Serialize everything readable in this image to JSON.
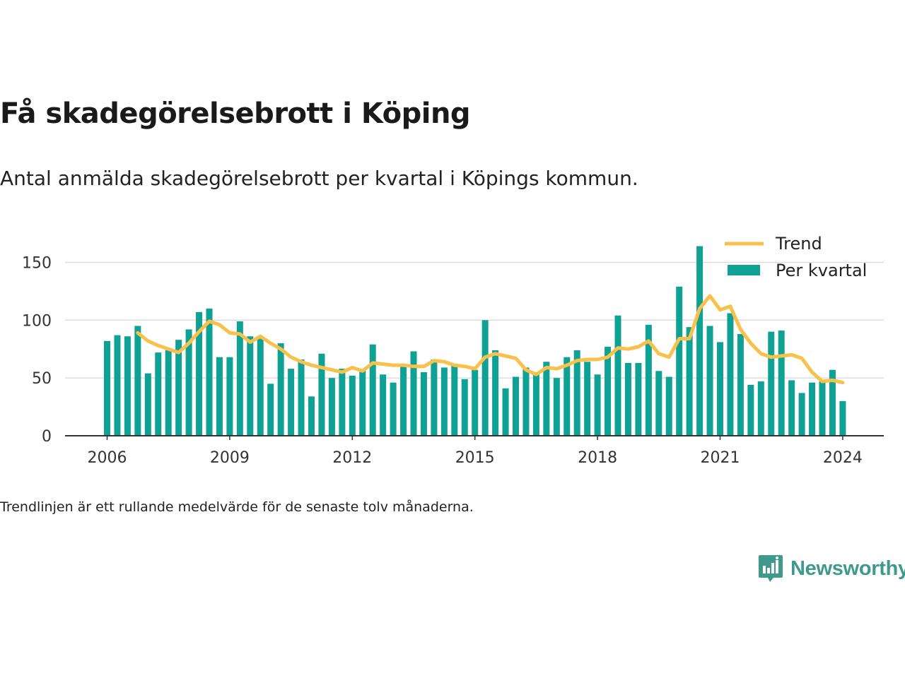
{
  "title": "Få skadegörelsebrott i Köping",
  "subtitle": "Antal anmälda skadegörelsebrott per kvartal i Köpings kommun.",
  "footnote": "Trendlinjen är ett rullande medelvärde för de senaste tolv månaderna.",
  "brand": {
    "name": "Newsworthy",
    "color": "#3f9a8e",
    "icon": "newsworthy-chart-bubble-icon"
  },
  "colors": {
    "bars": "#0fa294",
    "trend": "#f8c14b",
    "grid": "#dddddd",
    "axis": "#333333"
  },
  "chart_data": {
    "type": "bar",
    "xlabel": "",
    "ylabel": "",
    "x_start": "2006 Q1",
    "x_ticks": [
      "2006",
      "2009",
      "2012",
      "2015",
      "2018",
      "2021",
      "2024"
    ],
    "y_ticks": [
      0,
      50,
      100,
      150
    ],
    "ylim": [
      0,
      170
    ],
    "grid": true,
    "legend_position": "top-right",
    "series": [
      {
        "name": "Per kvartal",
        "type": "bar",
        "values": [
          82,
          87,
          86,
          95,
          54,
          72,
          74,
          83,
          92,
          107,
          110,
          68,
          68,
          99,
          86,
          86,
          45,
          80,
          58,
          66,
          34,
          71,
          50,
          58,
          52,
          57,
          79,
          53,
          46,
          60,
          73,
          55,
          66,
          59,
          61,
          49,
          57,
          100,
          74,
          41,
          51,
          59,
          55,
          64,
          50,
          68,
          74,
          64,
          53,
          77,
          104,
          63,
          63,
          96,
          56,
          51,
          129,
          94,
          164,
          95,
          81,
          106,
          88,
          44,
          47,
          90,
          91,
          48,
          37,
          46,
          47,
          57,
          30
        ]
      },
      {
        "name": "Trend",
        "type": "line",
        "values": [
          null,
          null,
          null,
          89,
          82,
          78,
          75,
          72,
          80,
          90,
          99,
          96,
          89,
          88,
          81,
          86,
          80,
          75,
          68,
          64,
          61,
          59,
          57,
          55,
          59,
          56,
          63,
          62,
          61,
          61,
          60,
          60,
          65,
          64,
          61,
          60,
          58,
          68,
          71,
          69,
          67,
          57,
          53,
          59,
          58,
          61,
          65,
          66,
          66,
          68,
          76,
          75,
          77,
          82,
          71,
          68,
          84,
          84,
          110,
          121,
          109,
          112,
          92,
          80,
          71,
          68,
          69,
          70,
          67,
          55,
          47,
          48,
          46
        ]
      }
    ]
  }
}
